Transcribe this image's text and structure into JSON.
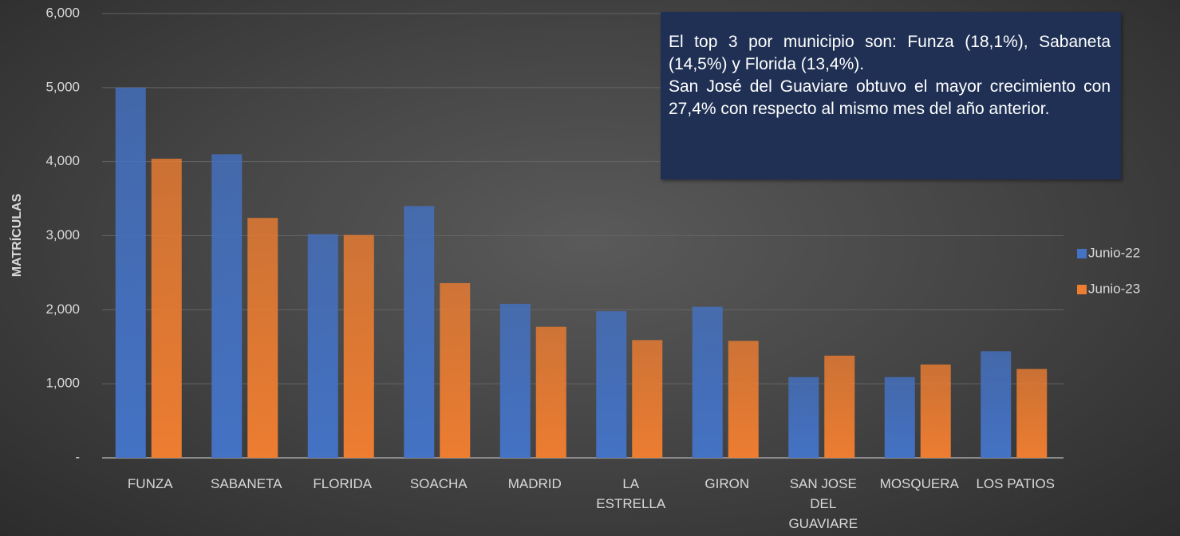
{
  "chart_data": {
    "type": "bar",
    "y_label": "MATRÍCULAS",
    "categories": [
      "FUNZA",
      "SABANETA",
      "FLORIDA",
      "SOACHA",
      "MADRID",
      "LA ESTRELLA",
      "GIRON",
      "SAN JOSE DEL GUAVIARE",
      "MOSQUERA",
      "LOS PATIOS"
    ],
    "series": [
      {
        "name": "Junio-22",
        "color": "#4472c4",
        "values": [
          5000,
          4100,
          3020,
          3400,
          2080,
          1980,
          2040,
          1090,
          1090,
          1440
        ]
      },
      {
        "name": "Junio-23",
        "color": "#ed7d31",
        "values": [
          4040,
          3240,
          3010,
          2360,
          1770,
          1590,
          1580,
          1380,
          1260,
          1200
        ]
      }
    ],
    "ylim": [
      0,
      6000
    ],
    "yticks": [
      {
        "value": 0,
        "label": "-"
      },
      {
        "value": 1000,
        "label": "1,000"
      },
      {
        "value": 2000,
        "label": "2,000"
      },
      {
        "value": 3000,
        "label": "3,000"
      },
      {
        "value": 4000,
        "label": "4,000"
      },
      {
        "value": 5000,
        "label": "5,000"
      },
      {
        "value": 6000,
        "label": "6,000"
      }
    ],
    "grid": true,
    "legend": "right",
    "annotation": [
      "El top 3 por municipio son: Funza (18,1%), Sabaneta (14,5%) y Florida (13,4%).",
      "San José del Guaviare obtuvo el mayor crecimiento con 27,4% con respecto al mismo mes del año anterior."
    ]
  }
}
